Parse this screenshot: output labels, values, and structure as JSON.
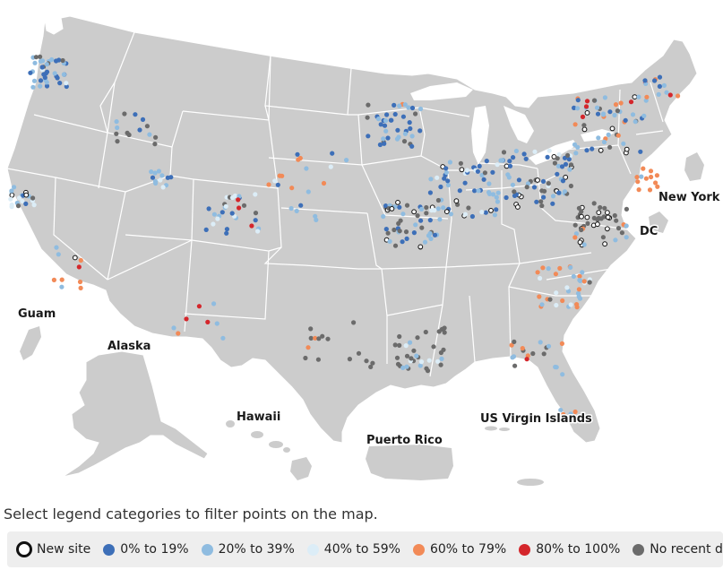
{
  "colors": {
    "land": "#cccccc",
    "border": "#ffffff",
    "cat_0_19": "#3d6fb8",
    "cat_20_39": "#8fbce0",
    "cat_40_59": "#dcedf7",
    "cat_60_79": "#f28a57",
    "cat_80_100": "#d4262b",
    "cat_no_data": "#6b6b6b",
    "cat_new_site": "#ffffff"
  },
  "map": {
    "region_labels": {
      "guam": "Guam",
      "alaska": "Alaska",
      "hawaii": "Hawaii",
      "puerto_rico": "Puerto Rico",
      "usvi": "US Virgin Islands",
      "new_york": "New York C",
      "dc": "DC"
    }
  },
  "instruction": "Select legend categories to filter points on the map.",
  "legend": [
    {
      "key": "new_site",
      "label": "New site",
      "icon": "ring-icon"
    },
    {
      "key": "cat_0_19",
      "label": "0% to 19%",
      "icon": "dot-icon"
    },
    {
      "key": "cat_20_39",
      "label": "20% to 39%",
      "icon": "dot-icon"
    },
    {
      "key": "cat_40_59",
      "label": "40% to 59%",
      "icon": "dot-icon"
    },
    {
      "key": "cat_60_79",
      "label": "60% to 79%",
      "icon": "dot-icon"
    },
    {
      "key": "cat_80_100",
      "label": "80% to 100%",
      "icon": "dot-icon"
    },
    {
      "key": "no_data",
      "label": "No recent data",
      "icon": "dot-icon"
    }
  ]
}
